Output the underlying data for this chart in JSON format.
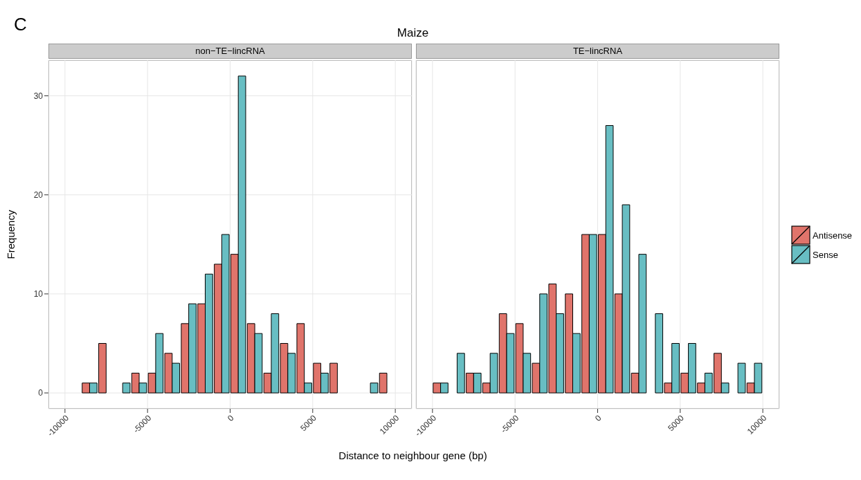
{
  "chart_data": [
    {
      "type": "histogram",
      "title": "non−TE−lincRNA",
      "annotations": [
        "C",
        "Maize"
      ],
      "xlabel": "Distance to neighbour gene (bp)",
      "ylabel": "Frequency",
      "bins": [
        -10000,
        -9000,
        -8000,
        -7000,
        -6000,
        -5000,
        -4000,
        -3000,
        -2000,
        -1000,
        0,
        1000,
        2000,
        3000,
        4000,
        5000,
        6000,
        7000,
        8000,
        9000,
        10000
      ],
      "series": [
        {
          "name": "Antisense",
          "color": "#e0746b",
          "values": [
            0,
            1,
            5,
            0,
            2,
            2,
            4,
            7,
            9,
            13,
            14,
            7,
            2,
            5,
            7,
            3,
            3,
            0,
            0,
            2
          ]
        },
        {
          "name": "Sense",
          "color": "#68bec3",
          "values": [
            0,
            1,
            0,
            1,
            1,
            6,
            3,
            9,
            12,
            16,
            32,
            6,
            8,
            4,
            1,
            2,
            0,
            0,
            1,
            0
          ]
        }
      ],
      "xlim": [
        -11000,
        11000
      ],
      "xticks": [
        -10000,
        -5000,
        0,
        5000,
        10000
      ],
      "ylim": [
        -1.6,
        33.6
      ],
      "yticks": [
        0,
        10,
        20,
        30
      ],
      "grid": true,
      "legend": "right"
    },
    {
      "type": "histogram",
      "title": "TE−lincRNA",
      "bins": [
        -10000,
        -9000,
        -8000,
        -7000,
        -6000,
        -5000,
        -4000,
        -3000,
        -2000,
        -1000,
        0,
        1000,
        2000,
        3000,
        4000,
        5000,
        6000,
        7000,
        8000,
        9000,
        10000
      ],
      "series": [
        {
          "color": "#e0746b",
          "values": [
            1,
            0,
            2,
            1,
            8,
            7,
            3,
            11,
            10,
            16,
            16,
            10,
            2,
            0,
            1,
            2,
            1,
            4,
            0,
            1
          ]
        },
        {
          "color": "#68bec3",
          "values": [
            1,
            4,
            2,
            4,
            6,
            4,
            10,
            8,
            6,
            16,
            27,
            19,
            14,
            8,
            5,
            5,
            2,
            1,
            3,
            3
          ]
        }
      ],
      "xlim": [
        -11000,
        11000
      ],
      "xticks": [
        -10000,
        -5000,
        0,
        5000,
        10000
      ],
      "ylim": [
        -1.6,
        33.6
      ],
      "yticks": [
        0,
        10,
        20,
        30
      ],
      "grid": true,
      "tick_labels": "x"
    }
  ]
}
